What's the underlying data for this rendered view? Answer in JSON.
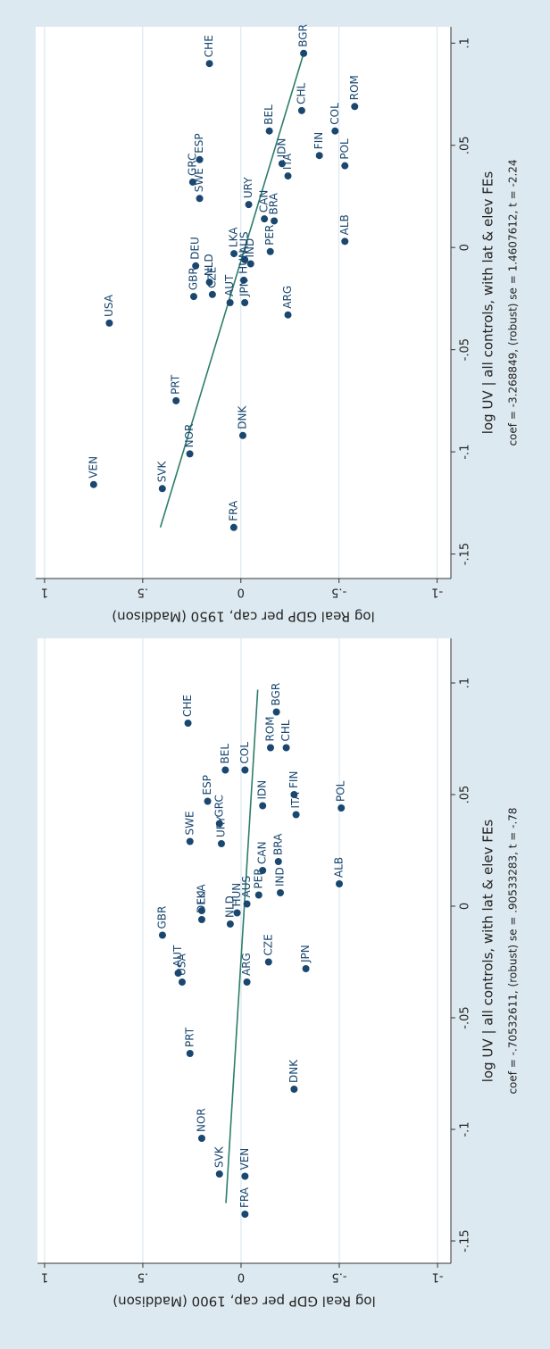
{
  "chart_data": [
    {
      "type": "scatter",
      "ylabel": "log Real GDP per cap, 1950 (Maddison)",
      "xlabel": "log UV | all controls, with lat & elev FEs",
      "note": "coef = -3.268849, (robust) se = 1.4607612, t = -2.24",
      "labels": [
        "FRA",
        "VEN",
        "SVK",
        "NOR",
        "DNK",
        "PRT",
        "USA",
        "ARG",
        "AUT",
        "JPN",
        "CZE",
        "GBR",
        "NLD",
        "DEU",
        "HUN",
        "LKA",
        "PER",
        "AUS",
        "IND",
        "CAN",
        "BRA",
        "URY",
        "SWE",
        "GRC",
        "ESP",
        "IDN",
        "ITA",
        "FIN",
        "POL",
        "BEL",
        "COL",
        "CHL",
        "ROM",
        "CHE",
        "BGR",
        "ALB"
      ],
      "x": [
        -0.137,
        -0.116,
        -0.118,
        -0.101,
        -0.092,
        -0.075,
        -0.037,
        -0.033,
        -0.027,
        -0.027,
        -0.023,
        -0.024,
        -0.017,
        -0.009,
        -0.016,
        -0.003,
        -0.002,
        -0.006,
        -0.008,
        0.014,
        0.013,
        0.021,
        0.024,
        0.032,
        0.043,
        0.041,
        0.035,
        0.045,
        0.04,
        0.057,
        0.057,
        0.067,
        0.069,
        0.09,
        0.095,
        0.003
      ],
      "y": [
        0.036,
        0.75,
        0.4,
        0.26,
        -0.01,
        0.33,
        0.67,
        -0.24,
        0.055,
        -0.02,
        0.145,
        0.24,
        0.16,
        0.23,
        -0.015,
        0.035,
        -0.15,
        -0.02,
        -0.05,
        -0.12,
        -0.17,
        -0.04,
        0.21,
        0.245,
        0.21,
        -0.21,
        -0.24,
        -0.4,
        -0.53,
        -0.145,
        -0.48,
        -0.31,
        -0.58,
        0.16,
        -0.32,
        -0.53
      ],
      "fit_x": [
        -0.137,
        0.095
      ],
      "fit_y": [
        0.41,
        -0.32
      ],
      "color": "#1a476f",
      "fit_color": "#2d7d6a",
      "xlim": [
        -0.162,
        0.108
      ],
      "ylim": [
        -1.07,
        1.045
      ],
      "xticks": [
        {
          "value": -0.15,
          "label": "-.15"
        },
        {
          "value": -0.1,
          "label": "-.1"
        },
        {
          "value": -0.05,
          "label": "-.05"
        },
        0,
        {
          "value": 0.05,
          "label": ".05"
        },
        {
          "value": 0.1,
          "label": ".1"
        }
      ],
      "yticks": [
        {
          "value": -1,
          "label": "-1"
        },
        {
          "value": -0.5,
          "label": "-.5"
        },
        0,
        {
          "value": 0.5,
          "label": ".5"
        },
        1
      ],
      "grid": true
    },
    {
      "type": "scatter",
      "ylabel": "log Real GDP per cap, 1900 (Maddison)",
      "xlabel": "log UV | all controls, with lat & elev FEs",
      "note": "coef = -.70532611, (robust) se = .90533283, t = -.78",
      "labels": [
        "FRA",
        "VEN",
        "SVK",
        "NOR",
        "DNK",
        "PRT",
        "USA",
        "AUT",
        "ARG",
        "CZE",
        "JPN",
        "GBR",
        "NLD",
        "DEU",
        "HUN",
        "AUS",
        "PER",
        "IND",
        "LKA",
        "CAN",
        "BRA",
        "URY",
        "SWE",
        "GRC",
        "ESP",
        "IDN",
        "ITA",
        "FIN",
        "BEL",
        "COL",
        "CHE",
        "CHL",
        "ROM",
        "BGR",
        "POL",
        "ALB"
      ],
      "x": [
        -0.138,
        -0.121,
        -0.12,
        -0.104,
        -0.082,
        -0.066,
        -0.034,
        -0.03,
        -0.034,
        -0.025,
        -0.028,
        -0.013,
        -0.008,
        -0.006,
        -0.003,
        0.001,
        0.005,
        0.006,
        -0.002,
        0.016,
        0.02,
        0.028,
        0.029,
        0.037,
        0.047,
        0.045,
        0.041,
        0.05,
        0.061,
        0.061,
        0.082,
        0.071,
        0.071,
        0.087,
        0.044,
        0.01
      ],
      "y": [
        -0.02,
        -0.02,
        0.11,
        0.2,
        -0.27,
        0.26,
        0.3,
        0.32,
        -0.03,
        -0.14,
        -0.33,
        0.4,
        0.055,
        0.2,
        0.02,
        -0.03,
        -0.09,
        -0.2,
        0.2,
        -0.11,
        -0.19,
        0.1,
        0.26,
        0.11,
        0.17,
        -0.11,
        -0.28,
        -0.27,
        0.08,
        -0.02,
        0.27,
        -0.23,
        -0.15,
        -0.18,
        -0.51,
        -0.5
      ],
      "fit_x": [
        -0.133,
        0.097
      ],
      "fit_y": [
        0.077,
        -0.085
      ],
      "color": "#1a476f",
      "fit_color": "#2d7d6a",
      "xlim": [
        -0.16,
        0.12
      ],
      "ylim": [
        -1.068,
        1.036
      ],
      "xticks": [
        {
          "value": -0.15,
          "label": "-.15"
        },
        {
          "value": -0.1,
          "label": "-.1"
        },
        {
          "value": -0.05,
          "label": "-.05"
        },
        0,
        {
          "value": 0.05,
          "label": ".05"
        },
        {
          "value": 0.1,
          "label": ".1"
        }
      ],
      "yticks": [
        {
          "value": -1,
          "label": "-1"
        },
        {
          "value": -0.5,
          "label": "-.5"
        },
        0,
        {
          "value": 0.5,
          "label": ".5"
        },
        1
      ],
      "grid": true
    }
  ]
}
